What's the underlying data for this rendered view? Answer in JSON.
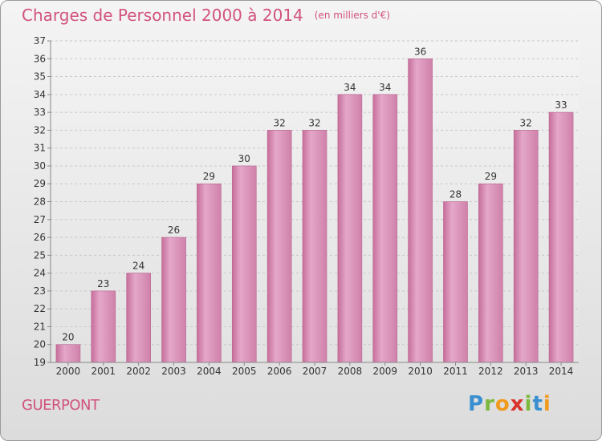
{
  "chart_data": {
    "type": "bar",
    "title": "Charges de Personnel 2000 à 2014",
    "subtitle": "(en milliers d'€)",
    "categories": [
      "2000",
      "2001",
      "2002",
      "2003",
      "2004",
      "2005",
      "2006",
      "2007",
      "2008",
      "2009",
      "2010",
      "2011",
      "2012",
      "2013",
      "2014"
    ],
    "values": [
      20,
      23,
      24,
      26,
      29,
      30,
      32,
      32,
      34,
      34,
      36,
      28,
      29,
      32,
      33
    ],
    "ylim": [
      19,
      37
    ],
    "yticks": [
      19,
      20,
      21,
      22,
      23,
      24,
      25,
      26,
      27,
      28,
      29,
      30,
      31,
      32,
      33,
      34,
      35,
      36,
      37
    ],
    "grid": true,
    "bar_color": "#d98fb5"
  },
  "location": "GUERPONT",
  "logo": {
    "text": "Proxiti"
  }
}
